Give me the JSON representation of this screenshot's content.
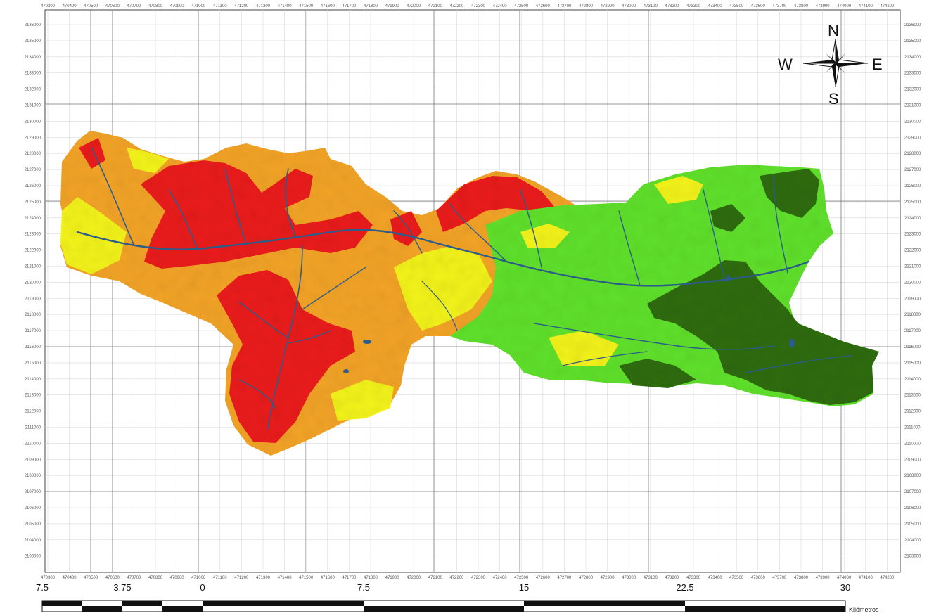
{
  "map": {
    "grid_x_labels": [
      "470300",
      "470400",
      "470500",
      "470600",
      "470700",
      "470800",
      "470900",
      "471000",
      "471100",
      "471200",
      "471300",
      "471400",
      "471500",
      "471600",
      "471700",
      "471800",
      "471900",
      "472000",
      "472100",
      "472200",
      "472300",
      "472400",
      "472500",
      "472600",
      "472700",
      "472800",
      "472900",
      "473000",
      "473100",
      "473200",
      "473300",
      "473400",
      "473500",
      "473600",
      "473700",
      "473800",
      "473900",
      "474000",
      "474100",
      "474200"
    ],
    "grid_y_labels": [
      "2136000",
      "2135000",
      "2134000",
      "2133000",
      "2132000",
      "2131000",
      "2130000",
      "2129000",
      "2128000",
      "2127000",
      "2126000",
      "2125000",
      "2124000",
      "2123000",
      "2122000",
      "2121000",
      "2120000",
      "2119000",
      "2118000",
      "2117000",
      "2116000",
      "2115000",
      "2114000",
      "2113000",
      "2112000",
      "2111000",
      "2110000",
      "2109000",
      "2108000",
      "2107000",
      "2106000",
      "2105000",
      "2104000",
      "2103000"
    ],
    "compass": {
      "north": "N",
      "south": "S",
      "east": "E",
      "west": "W"
    },
    "scale_bar": {
      "labels": [
        "7.5",
        "3.75",
        "0",
        "7.5",
        "15",
        "22.5",
        "30"
      ],
      "unit": "Kilómetros"
    },
    "colors": {
      "dark_green": "#2e6b0e",
      "light_green": "#5fe02a",
      "yellow": "#f2f21a",
      "orange": "#f2a326",
      "red": "#ea1b1b",
      "river": "#2b5c8a"
    }
  }
}
